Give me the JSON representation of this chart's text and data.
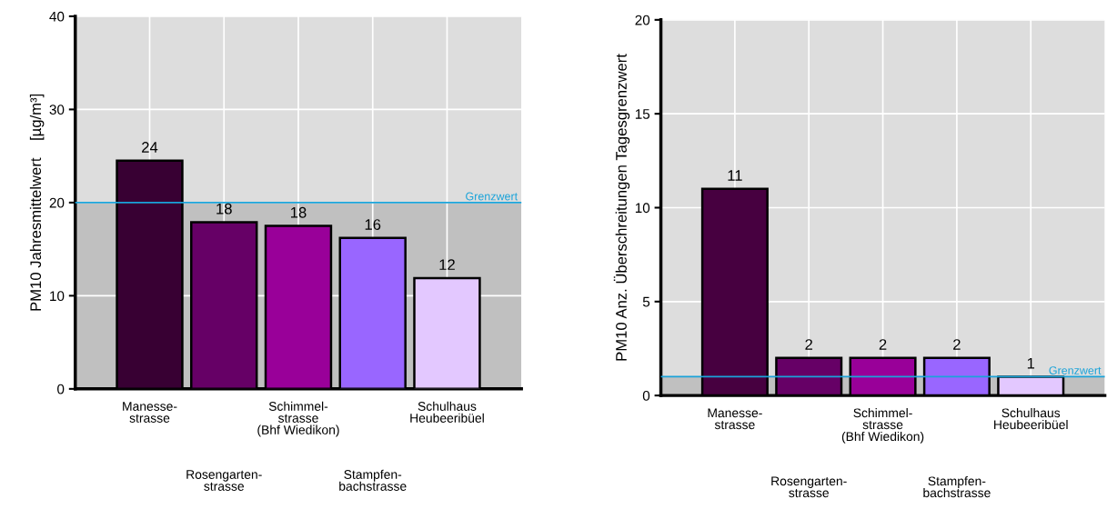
{
  "chart_data": [
    {
      "type": "bar",
      "ylabel": "PM10 Jahresmittelwert    [µg/m³]",
      "categories": [
        "Manesse-\nstrasse",
        "Rosengarten-\nstrasse",
        "Schimmel-\nstrasse\n(Bhf Wiedikon)",
        "Stampfen-\nbachstrasse",
        "Schulhaus\nHeubeeribüel"
      ],
      "values": [
        24.5,
        17.9,
        17.5,
        16.2,
        11.9
      ],
      "value_labels": [
        "24",
        "18",
        "18",
        "16",
        "12"
      ],
      "colors": [
        "#380033",
        "#660066",
        "#990099",
        "#9966ff",
        "#e3c8ff"
      ],
      "ylim": [
        0,
        40
      ],
      "yticks": [
        0,
        10,
        20,
        30,
        40
      ],
      "grid": true,
      "bands": [
        {
          "axis": "y",
          "from": 0,
          "to": 20,
          "color": "#c0c0c0"
        },
        {
          "axis": "y",
          "from": 20,
          "to": 40,
          "color": "#dddddd"
        }
      ],
      "ref_lines": [
        {
          "axis": "y",
          "value": 20,
          "label": "Grenzwert",
          "color": "#1aa3d9"
        }
      ]
    },
    {
      "type": "bar",
      "ylabel": "PM10 Anz. Überschreitungen Tagesgrenzwert",
      "categories": [
        "Manesse-\nstrasse",
        "Rosengarten-\nstrasse",
        "Schimmel-\nstrasse\n(Bhf Wiedikon)",
        "Stampfen-\nbachstrasse",
        "Schulhaus\nHeubeeribüel"
      ],
      "values": [
        11,
        2,
        2,
        2,
        1
      ],
      "data_labels": true,
      "colors": [
        "#470040",
        "#660066",
        "#990099",
        "#9966ff",
        "#e3c8ff"
      ],
      "ylim": [
        0,
        20
      ],
      "yticks": [
        0,
        5,
        10,
        15,
        20
      ],
      "grid": true,
      "bands": [
        {
          "axis": "y",
          "from": 0,
          "to": 1,
          "color": "#c0c0c0"
        },
        {
          "axis": "y",
          "from": 1,
          "to": 20,
          "color": "#dddddd"
        }
      ],
      "ref_lines": [
        {
          "axis": "y",
          "value": 1,
          "label": "Grenzwert",
          "color": "#1aa3d9"
        }
      ]
    }
  ]
}
